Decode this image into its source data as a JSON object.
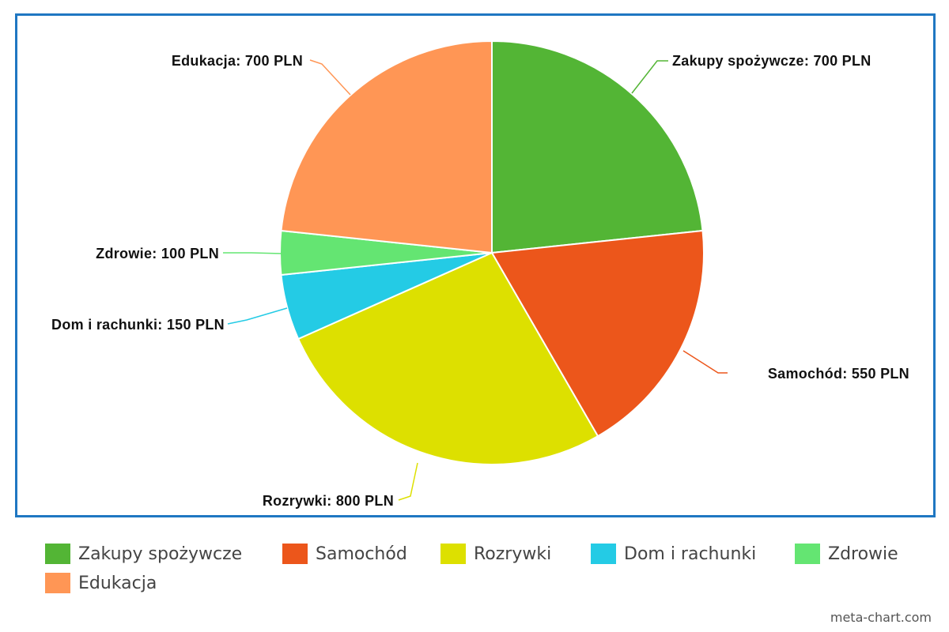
{
  "chart_data": {
    "type": "pie",
    "title": "",
    "currency": "PLN",
    "slices": [
      {
        "name": "Zakupy spożywcze",
        "value": 700,
        "color": "#53b535",
        "label": "Zakupy spożywcze: 700 PLN"
      },
      {
        "name": "Samochód",
        "value": 550,
        "color": "#ec561b",
        "label": "Samochód: 550 PLN"
      },
      {
        "name": "Rozrywki",
        "value": 800,
        "color": "#dde000",
        "label": "Rozrywki: 800 PLN"
      },
      {
        "name": "Dom i rachunki",
        "value": 150,
        "color": "#24cbe5",
        "label": "Dom i rachunki: 150 PLN"
      },
      {
        "name": "Zdrowie",
        "value": 100,
        "color": "#64e572",
        "label": "Zdrowie: 100 PLN"
      },
      {
        "name": "Edukacja",
        "value": 700,
        "color": "#ff9655",
        "label": "Edukacja: 700 PLN"
      }
    ],
    "legend_position": "bottom",
    "frame_color": "#1f77c2"
  },
  "credit": "meta-chart.com"
}
